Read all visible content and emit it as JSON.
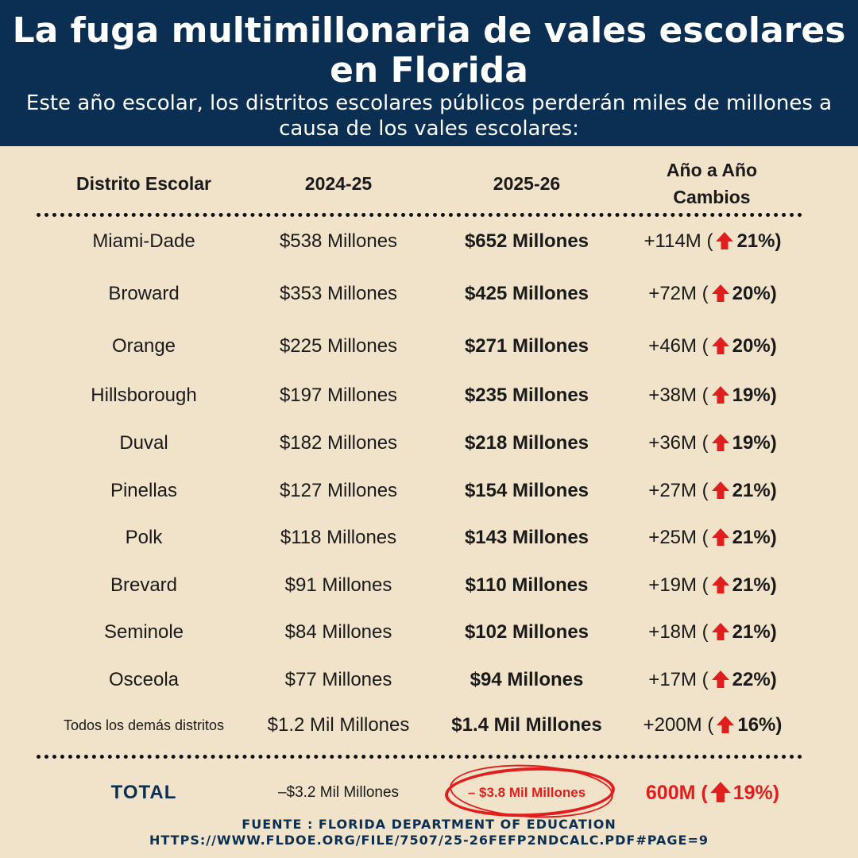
{
  "header": {
    "title": "La fuga multimillonaria de vales escolares en Florida",
    "subtitle": "Este año escolar, los distritos escolares públicos perderán miles de millones a causa de los vales escolares:"
  },
  "columns": {
    "district": "Distrito Escolar",
    "year1": "2024-25",
    "year2": "2025-26",
    "change": "Año a Año Cambios"
  },
  "rows": [
    {
      "district": "Miami-Dade",
      "y1": "$538 Millones",
      "y2": "$652 Millones",
      "chg": "+114M (",
      "pct": "21%)"
    },
    {
      "district": "Broward",
      "y1": "$353 Millones",
      "y2": "$425 Millones",
      "chg": "+72M (",
      "pct": "20%)"
    },
    {
      "district": "Orange",
      "y1": "$225 Millones",
      "y2": "$271 Millones",
      "chg": "+46M (",
      "pct": "20%)"
    },
    {
      "district": "Hillsborough",
      "y1": "$197 Millones",
      "y2": "$235 Millones",
      "chg": "+38M (",
      "pct": "19%)"
    },
    {
      "district": "Duval",
      "y1": "$182 Millones",
      "y2": "$218 Millones",
      "chg": "+36M (",
      "pct": "19%)"
    },
    {
      "district": "Pinellas",
      "y1": "$127 Millones",
      "y2": "$154 Millones",
      "chg": "+27M (",
      "pct": "21%)"
    },
    {
      "district": "Polk",
      "y1": "$118 Millones",
      "y2": "$143 Millones",
      "chg": "+25M (",
      "pct": "21%)"
    },
    {
      "district": "Brevard",
      "y1": "$91 Millones",
      "y2": "$110 Millones",
      "chg": "+19M (",
      "pct": "21%)"
    },
    {
      "district": "Seminole",
      "y1": "$84 Millones",
      "y2": "$102 Millones",
      "chg": "+18M (",
      "pct": "21%)"
    },
    {
      "district": "Osceola",
      "y1": "$77 Millones",
      "y2": "$94 Millones",
      "chg": "+17M (",
      "pct": "22%)"
    },
    {
      "district": "Todos los demás distritos",
      "y1": "$1.2 Mil Millones",
      "y2": "$1.4 Mil Millones",
      "chg": "+200M (",
      "pct": "16%)"
    }
  ],
  "total": {
    "label": "TOTAL",
    "y1": "–$3.2 Mil Millones",
    "y2": "– $3.8 Mil Millones",
    "chg": "600M (",
    "pct": "19%)"
  },
  "source": {
    "line1": "FUENTE : FLORIDA DEPARTMENT OF EDUCATION",
    "line2": "HTTPS://WWW.FLDOE.ORG/FILE/7507/25-26FEFP2NDCALC.PDF#PAGE=9"
  },
  "colors": {
    "header_bg": "#0a2f52",
    "background": "#f0e3c9",
    "accent_red": "#e01e1e"
  },
  "icons": {
    "increase": "up-arrow-icon"
  }
}
